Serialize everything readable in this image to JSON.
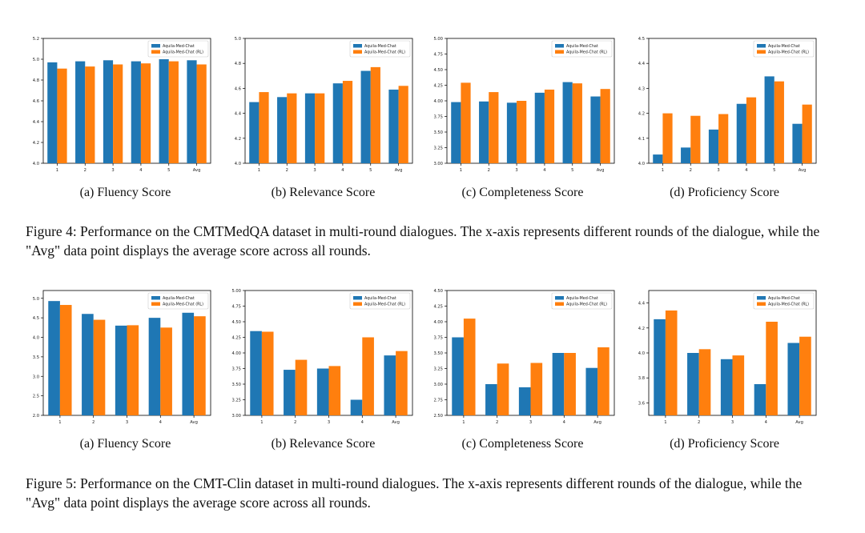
{
  "colors": {
    "series1": "#1f77b4",
    "series2": "#ff7f0e"
  },
  "series_names": [
    "Aquila-Med-Chat",
    "Aquila-Med-Chat (RL)"
  ],
  "figure4": {
    "caption": "Figure 4: Performance on the CMTMedQA dataset in multi-round dialogues. The x-axis represents different rounds of the dialogue, while the \"Avg\" data point displays the average score across all rounds.",
    "subcaptions": [
      "(a) Fluency Score",
      "(b) Relevance Score",
      "(c) Completeness Score",
      "(d) Proficiency Score"
    ]
  },
  "figure5": {
    "caption": "Figure 5: Performance on the CMT-Clin dataset in multi-round dialogues. The x-axis represents different rounds of the dialogue, while the \"Avg\" data point displays the average score across all rounds.",
    "subcaptions": [
      "(a) Fluency Score",
      "(b) Relevance Score",
      "(c) Completeness Score",
      "(d) Proficiency Score"
    ]
  },
  "chart_data": [
    {
      "type": "bar",
      "title": "",
      "xlabel": "",
      "ylabel": "",
      "legend": "top-right",
      "categories": [
        "1",
        "2",
        "3",
        "4",
        "5",
        "Avg"
      ],
      "ylim": [
        4.0,
        5.2
      ],
      "yticks": [
        "4.0",
        "4.2",
        "4.4",
        "4.6",
        "4.8",
        "5.0",
        "5.2"
      ],
      "series": [
        {
          "name": "Aquila-Med-Chat",
          "values": [
            4.97,
            4.98,
            4.99,
            4.98,
            5.0,
            4.99
          ]
        },
        {
          "name": "Aquila-Med-Chat (RL)",
          "values": [
            4.91,
            4.93,
            4.95,
            4.96,
            4.98,
            4.95
          ]
        }
      ]
    },
    {
      "type": "bar",
      "title": "",
      "xlabel": "",
      "ylabel": "",
      "legend": "top-right",
      "categories": [
        "1",
        "2",
        "3",
        "4",
        "5",
        "Avg"
      ],
      "ylim": [
        4.0,
        5.0
      ],
      "yticks": [
        "4.0",
        "4.2",
        "4.4",
        "4.6",
        "4.8",
        "5.0"
      ],
      "series": [
        {
          "name": "Aquila-Med-Chat",
          "values": [
            4.49,
            4.53,
            4.56,
            4.64,
            4.74,
            4.59
          ]
        },
        {
          "name": "Aquila-Med-Chat (RL)",
          "values": [
            4.57,
            4.56,
            4.56,
            4.66,
            4.77,
            4.62
          ]
        }
      ]
    },
    {
      "type": "bar",
      "title": "",
      "xlabel": "",
      "ylabel": "",
      "legend": "top-right",
      "categories": [
        "1",
        "2",
        "3",
        "4",
        "5",
        "Avg"
      ],
      "ylim": [
        3.0,
        5.0
      ],
      "yticks": [
        "3.00",
        "3.25",
        "3.50",
        "3.75",
        "4.00",
        "4.25",
        "4.50",
        "4.75",
        "5.00"
      ],
      "series": [
        {
          "name": "Aquila-Med-Chat",
          "values": [
            3.98,
            3.99,
            3.97,
            4.13,
            4.3,
            4.07
          ]
        },
        {
          "name": "Aquila-Med-Chat (RL)",
          "values": [
            4.29,
            4.14,
            4.0,
            4.18,
            4.28,
            4.19
          ]
        }
      ]
    },
    {
      "type": "bar",
      "title": "",
      "xlabel": "",
      "ylabel": "",
      "legend": "top-right",
      "categories": [
        "1",
        "2",
        "3",
        "4",
        "5",
        "Avg"
      ],
      "ylim": [
        4.0,
        4.5
      ],
      "yticks": [
        "4.0",
        "4.1",
        "4.2",
        "4.3",
        "4.4",
        "4.5"
      ],
      "series": [
        {
          "name": "Aquila-Med-Chat",
          "values": [
            4.035,
            4.063,
            4.135,
            4.238,
            4.348,
            4.158
          ]
        },
        {
          "name": "Aquila-Med-Chat (RL)",
          "values": [
            4.2,
            4.19,
            4.197,
            4.264,
            4.328,
            4.235
          ]
        }
      ]
    },
    {
      "type": "bar",
      "title": "",
      "xlabel": "",
      "ylabel": "",
      "legend": "top-right",
      "categories": [
        "1",
        "2",
        "3",
        "4",
        "Avg"
      ],
      "ylim": [
        2.0,
        5.2
      ],
      "yticks": [
        "2.0",
        "2.5",
        "3.0",
        "3.5",
        "4.0",
        "4.5",
        "5.0"
      ],
      "series": [
        {
          "name": "Aquila-Med-Chat",
          "values": [
            4.93,
            4.6,
            4.3,
            4.5,
            4.63
          ]
        },
        {
          "name": "Aquila-Med-Chat (RL)",
          "values": [
            4.83,
            4.45,
            4.31,
            4.25,
            4.54
          ]
        }
      ]
    },
    {
      "type": "bar",
      "title": "",
      "xlabel": "",
      "ylabel": "",
      "legend": "top-right",
      "categories": [
        "1",
        "2",
        "3",
        "4",
        "Avg"
      ],
      "ylim": [
        3.0,
        5.0
      ],
      "yticks": [
        "3.00",
        "3.25",
        "3.50",
        "3.75",
        "4.00",
        "4.25",
        "4.50",
        "4.75",
        "5.00"
      ],
      "series": [
        {
          "name": "Aquila-Med-Chat",
          "values": [
            4.35,
            3.73,
            3.75,
            3.25,
            3.96
          ]
        },
        {
          "name": "Aquila-Med-Chat (RL)",
          "values": [
            4.34,
            3.89,
            3.79,
            4.25,
            4.03
          ]
        }
      ]
    },
    {
      "type": "bar",
      "title": "",
      "xlabel": "",
      "ylabel": "",
      "legend": "top-right",
      "categories": [
        "1",
        "2",
        "3",
        "4",
        "Avg"
      ],
      "ylim": [
        2.5,
        4.5
      ],
      "yticks": [
        "2.50",
        "2.75",
        "3.00",
        "3.25",
        "3.50",
        "3.75",
        "4.00",
        "4.25",
        "4.50"
      ],
      "series": [
        {
          "name": "Aquila-Med-Chat",
          "values": [
            3.75,
            3.0,
            2.95,
            3.5,
            3.26
          ]
        },
        {
          "name": "Aquila-Med-Chat (RL)",
          "values": [
            4.05,
            3.33,
            3.34,
            3.5,
            3.59
          ]
        }
      ]
    },
    {
      "type": "bar",
      "title": "",
      "xlabel": "",
      "ylabel": "",
      "legend": "top-right",
      "categories": [
        "1",
        "2",
        "3",
        "4",
        "Avg"
      ],
      "ylim": [
        3.5,
        4.5
      ],
      "yticks": [
        "3.6",
        "3.8",
        "4.0",
        "4.2",
        "4.4"
      ],
      "series": [
        {
          "name": "Aquila-Med-Chat",
          "values": [
            4.27,
            4.0,
            3.95,
            3.75,
            4.08
          ]
        },
        {
          "name": "Aquila-Med-Chat (RL)",
          "values": [
            4.34,
            4.03,
            3.98,
            4.25,
            4.13
          ]
        }
      ]
    }
  ]
}
